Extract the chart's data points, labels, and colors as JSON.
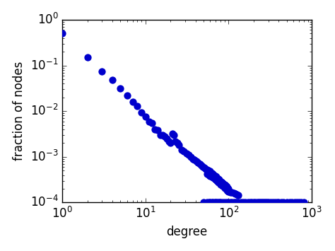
{
  "title": "",
  "xlabel": "degree",
  "ylabel": "fraction of nodes",
  "xlim": [
    1,
    1000
  ],
  "ylim": [
    0.0001,
    1
  ],
  "dot_color": "#0000CC",
  "dot_size": 55,
  "points": [
    [
      1,
      0.5
    ],
    [
      2,
      0.15
    ],
    [
      3,
      0.075
    ],
    [
      4,
      0.048
    ],
    [
      5,
      0.032
    ],
    [
      6,
      0.022
    ],
    [
      7,
      0.016
    ],
    [
      8,
      0.013
    ],
    [
      9,
      0.0095
    ],
    [
      10,
      0.0075
    ],
    [
      11,
      0.006
    ],
    [
      12,
      0.0055
    ],
    [
      13,
      0.004
    ],
    [
      14,
      0.0038
    ],
    [
      15,
      0.003
    ],
    [
      16,
      0.003
    ],
    [
      17,
      0.0028
    ],
    [
      18,
      0.0025
    ],
    [
      19,
      0.0022
    ],
    [
      20,
      0.002
    ],
    [
      21,
      0.0032
    ],
    [
      22,
      0.003
    ],
    [
      23,
      0.0022
    ],
    [
      24,
      0.002
    ],
    [
      25,
      0.0018
    ],
    [
      27,
      0.0014
    ],
    [
      29,
      0.0013
    ],
    [
      31,
      0.0012
    ],
    [
      33,
      0.0011
    ],
    [
      35,
      0.001
    ],
    [
      37,
      0.0009
    ],
    [
      39,
      0.00085
    ],
    [
      41,
      0.0008
    ],
    [
      43,
      0.00075
    ],
    [
      45,
      0.0007
    ],
    [
      47,
      0.00065
    ],
    [
      49,
      0.0006
    ],
    [
      51,
      0.00058
    ],
    [
      53,
      0.00055
    ],
    [
      55,
      0.00052
    ],
    [
      57,
      0.0005
    ],
    [
      59,
      0.00048
    ],
    [
      61,
      0.00046
    ],
    [
      63,
      0.00044
    ],
    [
      65,
      0.00042
    ],
    [
      67,
      0.0004
    ],
    [
      69,
      0.00038
    ],
    [
      71,
      0.00036
    ],
    [
      73,
      0.00034
    ],
    [
      75,
      0.00033
    ],
    [
      77,
      0.00032
    ],
    [
      79,
      0.0003
    ],
    [
      81,
      0.00029
    ],
    [
      83,
      0.00028
    ],
    [
      85,
      0.00027
    ],
    [
      87,
      0.00026
    ],
    [
      89,
      0.00025
    ],
    [
      91,
      0.00024
    ],
    [
      93,
      0.00023
    ],
    [
      95,
      0.00022
    ],
    [
      97,
      0.00021
    ],
    [
      99,
      0.0002
    ],
    [
      55,
      0.00042
    ],
    [
      58,
      0.0004
    ],
    [
      60,
      0.00038
    ],
    [
      63,
      0.00036
    ],
    [
      65,
      0.00035
    ],
    [
      68,
      0.00033
    ],
    [
      70,
      0.00032
    ],
    [
      73,
      0.0003
    ],
    [
      75,
      0.00028
    ],
    [
      78,
      0.00027
    ],
    [
      80,
      0.00025
    ],
    [
      83,
      0.00024
    ],
    [
      85,
      0.00023
    ],
    [
      88,
      0.00022
    ],
    [
      90,
      0.00021
    ],
    [
      93,
      0.0002
    ],
    [
      95,
      0.000185
    ],
    [
      98,
      0.00018
    ],
    [
      100,
      0.000175
    ],
    [
      105,
      0.00017
    ],
    [
      110,
      0.000165
    ],
    [
      115,
      0.00016
    ],
    [
      120,
      0.000155
    ],
    [
      125,
      0.00015
    ],
    [
      130,
      0.000145
    ],
    [
      50,
      0.0001
    ],
    [
      55,
      0.0001
    ],
    [
      58,
      0.0001
    ],
    [
      60,
      0.0001
    ],
    [
      63,
      0.0001
    ],
    [
      65,
      0.0001
    ],
    [
      68,
      0.0001
    ],
    [
      70,
      0.0001
    ],
    [
      73,
      0.0001
    ],
    [
      75,
      0.0001
    ],
    [
      78,
      0.0001
    ],
    [
      80,
      0.0001
    ],
    [
      85,
      0.0001
    ],
    [
      90,
      0.0001
    ],
    [
      95,
      0.0001
    ],
    [
      100,
      0.0001
    ],
    [
      105,
      0.0001
    ],
    [
      110,
      0.0001
    ],
    [
      115,
      0.0001
    ],
    [
      120,
      0.0001
    ],
    [
      125,
      0.0001
    ],
    [
      130,
      0.0001
    ],
    [
      140,
      0.0001
    ],
    [
      150,
      0.0001
    ],
    [
      160,
      0.0001
    ],
    [
      170,
      0.0001
    ],
    [
      180,
      0.0001
    ],
    [
      190,
      0.0001
    ],
    [
      200,
      0.0001
    ],
    [
      210,
      0.0001
    ],
    [
      220,
      0.0001
    ],
    [
      230,
      0.0001
    ],
    [
      240,
      0.0001
    ],
    [
      250,
      0.0001
    ],
    [
      260,
      0.0001
    ],
    [
      270,
      0.0001
    ],
    [
      280,
      0.0001
    ],
    [
      290,
      0.0001
    ],
    [
      300,
      0.0001
    ],
    [
      320,
      0.0001
    ],
    [
      340,
      0.0001
    ],
    [
      360,
      0.0001
    ],
    [
      380,
      0.0001
    ],
    [
      400,
      0.0001
    ],
    [
      430,
      0.0001
    ],
    [
      460,
      0.0001
    ],
    [
      500,
      0.0001
    ],
    [
      540,
      0.0001
    ],
    [
      580,
      0.0001
    ],
    [
      620,
      0.0001
    ],
    [
      660,
      0.0001
    ],
    [
      700,
      0.0001
    ],
    [
      750,
      0.0001
    ],
    [
      800,
      0.0001
    ]
  ]
}
